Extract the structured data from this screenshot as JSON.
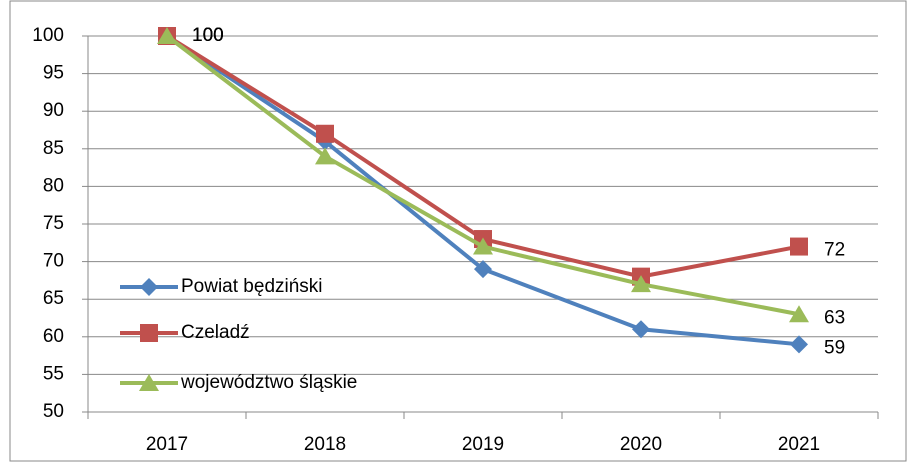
{
  "chart_data": {
    "type": "line",
    "categories": [
      "2017",
      "2018",
      "2019",
      "2020",
      "2021"
    ],
    "series": [
      {
        "name": "Powiat będziński",
        "color": "#4f81bd",
        "marker": "diamond",
        "values": [
          100,
          86,
          69,
          61,
          59
        ]
      },
      {
        "name": "Czeladź",
        "color": "#c0504d",
        "marker": "square",
        "values": [
          100,
          87,
          73,
          68,
          72
        ]
      },
      {
        "name": "województwo śląskie",
        "color": "#9bbb59",
        "marker": "triangle",
        "values": [
          100,
          84,
          72,
          67,
          63
        ]
      }
    ],
    "ylim": [
      50,
      100
    ],
    "yticks": [
      50,
      55,
      60,
      65,
      70,
      75,
      80,
      85,
      90,
      95,
      100
    ],
    "grid": true,
    "legend": "left",
    "data_labels": "first-and-last"
  }
}
